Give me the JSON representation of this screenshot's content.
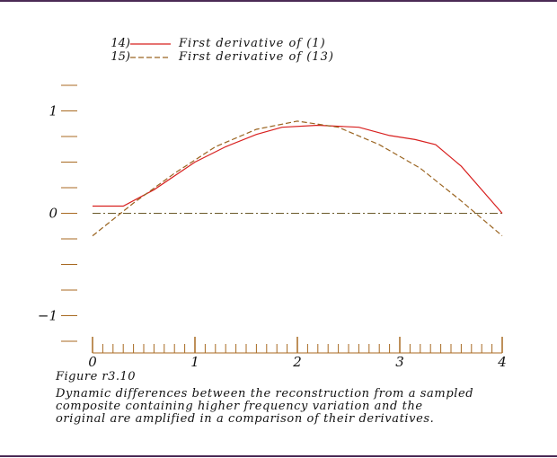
{
  "chart_data": {
    "type": "line",
    "x_range": [
      0,
      4
    ],
    "y_range": [
      -1.25,
      1.25
    ],
    "x_major_ticks": [
      0,
      1,
      2,
      3,
      4
    ],
    "x_minor_step": 0.1,
    "y_ticks": [
      -1.25,
      -1,
      -0.75,
      -0.5,
      -0.25,
      0,
      0.25,
      0.5,
      0.75,
      1,
      1.25
    ],
    "y_tick_labels": [
      {
        "value": 1,
        "label": "1"
      },
      {
        "value": 0,
        "label": "0"
      },
      {
        "value": -1,
        "label": "−1"
      }
    ],
    "x_tick_labels": [
      "0",
      "1",
      "2",
      "3",
      "4"
    ],
    "zero_line": true,
    "grid": false,
    "legend_position": "top-left",
    "series": [
      {
        "id": "14",
        "legend_number": "14)",
        "name": "First derivative of (1)",
        "color": "#d8201f",
        "style": "solid",
        "points": [
          [
            0,
            0.07
          ],
          [
            0.3,
            0.07
          ],
          [
            0.6,
            0.23
          ],
          [
            1.0,
            0.5
          ],
          [
            1.3,
            0.65
          ],
          [
            1.6,
            0.77
          ],
          [
            1.85,
            0.84
          ],
          [
            2.2,
            0.86
          ],
          [
            2.6,
            0.84
          ],
          [
            2.9,
            0.76
          ],
          [
            3.15,
            0.72
          ],
          [
            3.35,
            0.67
          ],
          [
            3.6,
            0.46
          ],
          [
            4.0,
            0.0
          ]
        ]
      },
      {
        "id": "15",
        "legend_number": "15)",
        "name": "First derivative of (13)",
        "color": "#9a6420",
        "style": "dashed",
        "points": [
          [
            0,
            -0.22
          ],
          [
            0.4,
            0.1
          ],
          [
            0.8,
            0.39
          ],
          [
            1.2,
            0.65
          ],
          [
            1.6,
            0.82
          ],
          [
            2.0,
            0.9
          ],
          [
            2.4,
            0.84
          ],
          [
            2.8,
            0.67
          ],
          [
            3.2,
            0.44
          ],
          [
            3.6,
            0.12
          ],
          [
            4.0,
            -0.22
          ]
        ]
      }
    ]
  },
  "caption": {
    "figure_label": "Figure r3.10",
    "lines": [
      "Dynamic differences between the reconstruction from a sampled",
      "composite containing higher frequency variation and the",
      "original are amplified in a comparison of their derivatives."
    ]
  }
}
